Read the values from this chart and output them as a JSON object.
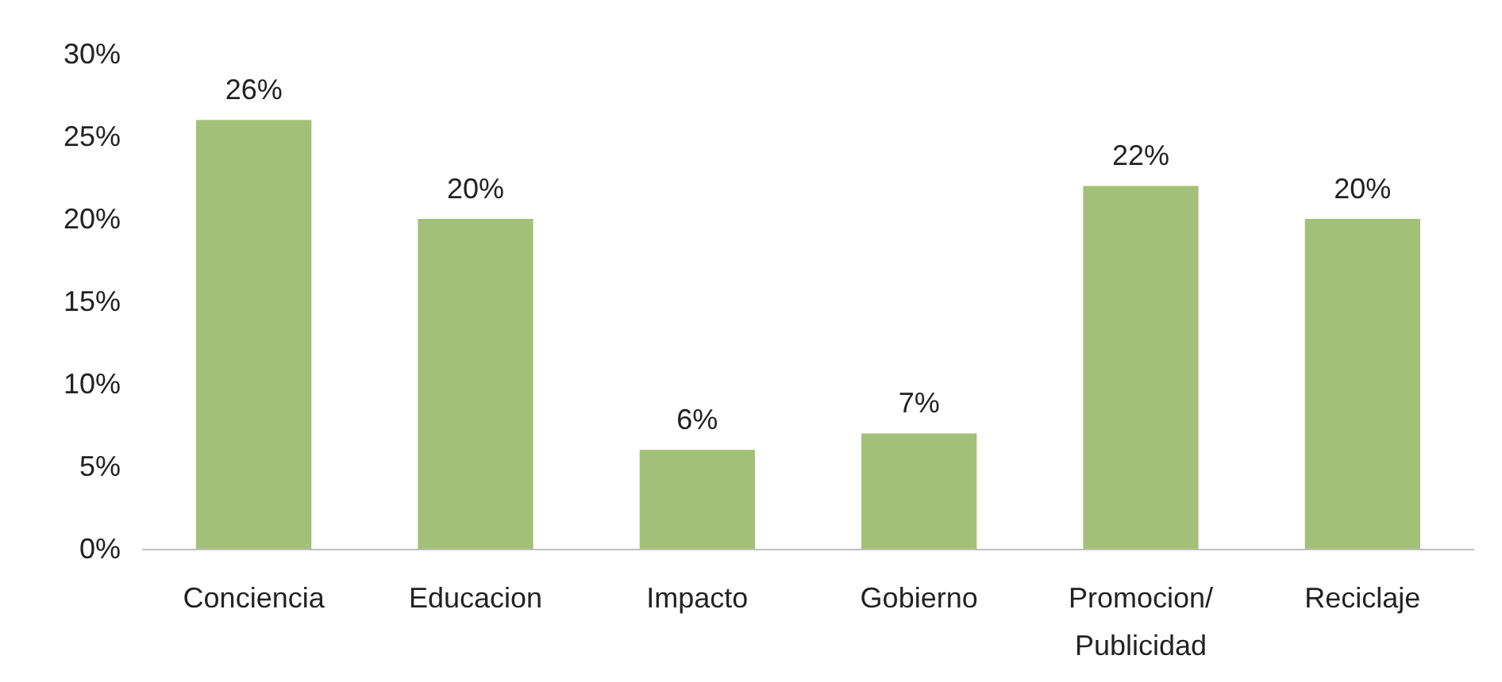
{
  "chart_data": {
    "type": "bar",
    "categories": [
      "Conciencia",
      "Educacion",
      "Impacto",
      "Gobierno",
      "Promocion/\nPublicidad",
      "Reciclaje"
    ],
    "values": [
      26,
      20,
      6,
      7,
      22,
      20
    ],
    "color": "#a3c078",
    "ylim": [
      0,
      30
    ],
    "yticks": [
      {
        "value": 0,
        "label": "0%"
      },
      {
        "value": 5,
        "label": "5%"
      },
      {
        "value": 10,
        "label": "10%"
      },
      {
        "value": 15,
        "label": "15%"
      },
      {
        "value": 20,
        "label": "20%"
      },
      {
        "value": 25,
        "label": "25%"
      },
      {
        "value": 30,
        "label": "30%"
      }
    ],
    "value_labels": [
      "26%",
      "20%",
      "6%",
      "7%",
      "22%",
      "20%"
    ]
  }
}
